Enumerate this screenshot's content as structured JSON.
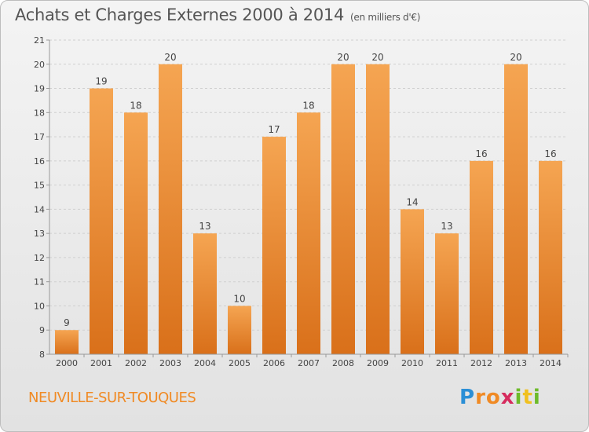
{
  "title": "Achats et Charges Externes 2000 à 2014",
  "subtitle": "(en milliers d'€)",
  "commune": "NEUVILLE-SUR-TOUQUES",
  "logo": {
    "letters": [
      "P",
      "r",
      "o",
      "x",
      "i",
      "t",
      "i"
    ],
    "colors": [
      "#2b8fd6",
      "#f08a24",
      "#f08a24",
      "#d62b5e",
      "#6dbb2a",
      "#f0c020",
      "#6dbb2a"
    ]
  },
  "colors": {
    "bar_top": "#f5a552",
    "bar_bottom": "#d9701a",
    "accent": "#f08a24"
  },
  "chart_data": {
    "type": "bar",
    "categories": [
      "2000",
      "2001",
      "2002",
      "2003",
      "2004",
      "2005",
      "2006",
      "2007",
      "2008",
      "2009",
      "2010",
      "2011",
      "2012",
      "2013",
      "2014"
    ],
    "values": [
      9,
      19,
      18,
      20,
      13,
      10,
      17,
      18,
      20,
      20,
      14,
      13,
      16,
      20,
      16
    ],
    "ylim": [
      8,
      21
    ],
    "yticks": [
      8,
      9,
      10,
      11,
      12,
      13,
      14,
      15,
      16,
      17,
      18,
      19,
      20,
      21
    ],
    "grid": true,
    "xlabel": "",
    "ylabel": ""
  }
}
